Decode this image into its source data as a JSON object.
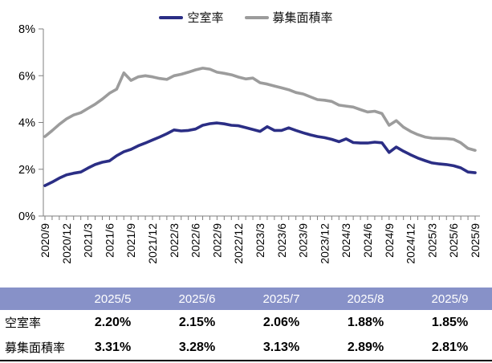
{
  "legend": {
    "items": [
      {
        "label": "空室率",
        "color": "#2B2E85"
      },
      {
        "label": "募集面積率",
        "color": "#9C9C9C"
      }
    ]
  },
  "chart_data": {
    "type": "line",
    "title": "",
    "n_points": 61,
    "x_first": "2020/9",
    "x_last": "2025/9",
    "x_tick_labels": [
      "2020/9",
      "2020/12",
      "2021/3",
      "2021/6",
      "2021/9",
      "2021/12",
      "2022/3",
      "2022/6",
      "2022/9",
      "2022/12",
      "2023/3",
      "2023/6",
      "2023/9",
      "2023/12",
      "2024/3",
      "2024/6",
      "2024/9",
      "2024/12",
      "2025/3",
      "2025/6",
      "2025/9"
    ],
    "x_labeled_every": 3,
    "ylim": [
      0,
      8
    ],
    "yticks": [
      {
        "value": 0,
        "label": "0%"
      },
      {
        "value": 2,
        "label": "2%"
      },
      {
        "value": 4,
        "label": "4%"
      },
      {
        "value": 6,
        "label": "6%"
      },
      {
        "value": 8,
        "label": "8%"
      }
    ],
    "grid": false,
    "legend_position": "top-center",
    "axis_color": "#7F7F7F",
    "series": [
      {
        "name": "空室率",
        "color": "#2B2E85",
        "values": [
          1.3,
          1.45,
          1.62,
          1.76,
          1.83,
          1.88,
          2.05,
          2.2,
          2.3,
          2.36,
          2.58,
          2.75,
          2.85,
          3.0,
          3.12,
          3.25,
          3.38,
          3.52,
          3.68,
          3.64,
          3.66,
          3.72,
          3.88,
          3.95,
          3.98,
          3.94,
          3.88,
          3.86,
          3.78,
          3.7,
          3.62,
          3.82,
          3.66,
          3.66,
          3.77,
          3.66,
          3.56,
          3.47,
          3.4,
          3.35,
          3.28,
          3.18,
          3.3,
          3.14,
          3.12,
          3.12,
          3.16,
          3.13,
          2.72,
          2.95,
          2.77,
          2.62,
          2.48,
          2.37,
          2.27,
          2.23,
          2.2,
          2.15,
          2.06,
          1.88,
          1.85
        ]
      },
      {
        "name": "募集面積率",
        "color": "#9C9C9C",
        "values": [
          3.4,
          3.65,
          3.92,
          4.15,
          4.32,
          4.42,
          4.6,
          4.78,
          5.0,
          5.25,
          5.42,
          6.12,
          5.8,
          5.95,
          6.0,
          5.95,
          5.88,
          5.84,
          6.0,
          6.06,
          6.15,
          6.25,
          6.32,
          6.28,
          6.15,
          6.1,
          6.04,
          5.94,
          5.86,
          5.9,
          5.7,
          5.64,
          5.56,
          5.48,
          5.4,
          5.28,
          5.22,
          5.1,
          4.98,
          4.95,
          4.9,
          4.74,
          4.7,
          4.66,
          4.55,
          4.45,
          4.48,
          4.38,
          3.88,
          4.08,
          3.8,
          3.62,
          3.48,
          3.38,
          3.33,
          3.32,
          3.31,
          3.28,
          3.13,
          2.89,
          2.81
        ]
      }
    ]
  },
  "table": {
    "header_bg": "#8791C8",
    "header_text_color": "#FFFFFF",
    "columns": [
      "",
      "2025/5",
      "2025/6",
      "2025/7",
      "2025/8",
      "2025/9"
    ],
    "rows": [
      {
        "label": "空室率",
        "values": [
          "2.20%",
          "2.15%",
          "2.06%",
          "1.88%",
          "1.85%"
        ]
      },
      {
        "label": "募集面積率",
        "values": [
          "3.31%",
          "3.28%",
          "3.13%",
          "2.89%",
          "2.81%"
        ]
      }
    ]
  }
}
